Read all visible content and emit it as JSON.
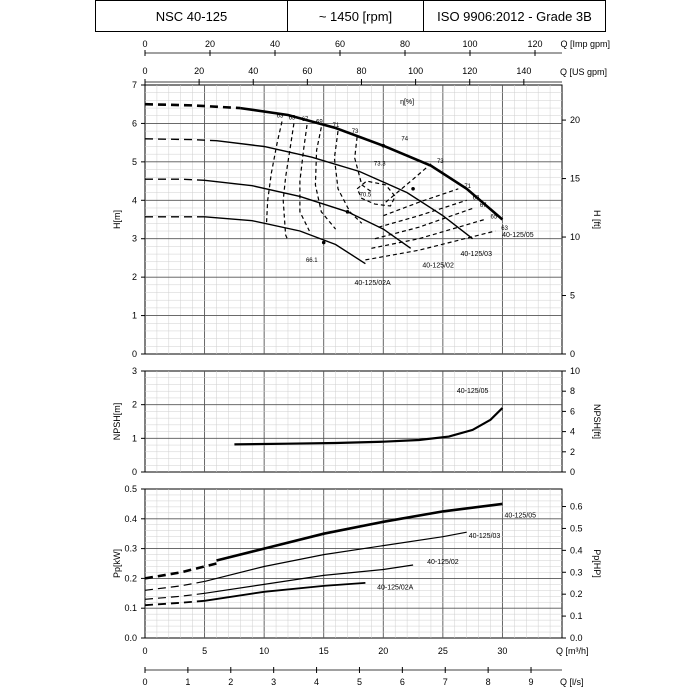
{
  "header": {
    "model": "NSC 40-125",
    "speed": "~ 1450 [rpm]",
    "standard": "ISO 9906:2012 - Grade 3B"
  },
  "axes": {
    "imp_gpm": {
      "label": "Q [Imp gpm]",
      "ticks": [
        "0",
        "20",
        "40",
        "60",
        "80",
        "100",
        "120"
      ]
    },
    "us_gpm": {
      "label": "Q [US gpm]",
      "ticks": [
        "0",
        "20",
        "40",
        "60",
        "80",
        "100",
        "120",
        "140"
      ]
    },
    "m3h": {
      "label": "Q [m³/h]",
      "ticks": [
        "0",
        "5",
        "10",
        "15",
        "20",
        "25",
        "30"
      ]
    },
    "ls": {
      "label": "Q [l/s]",
      "ticks": [
        "0",
        "1",
        "2",
        "3",
        "4",
        "5",
        "6",
        "7",
        "8",
        "9"
      ]
    }
  },
  "chart_data": [
    {
      "type": "line",
      "panel": "head",
      "xlabel": "Q [m³/h]",
      "ylabel": "H[m]",
      "ylabel_right": "H [ft]",
      "xlim": [
        0,
        35
      ],
      "ylim": [
        0,
        7
      ],
      "y_ticks": [
        "0",
        "1",
        "2",
        "3",
        "4",
        "5",
        "6",
        "7"
      ],
      "y_right_ticks": [
        "0",
        "5",
        "10",
        "15",
        "20"
      ],
      "grid": true,
      "efficiency_label": "η[%]",
      "series": [
        {
          "name": "40-125/05",
          "extrapolated": [
            [
              0,
              6.5
            ],
            [
              4,
              6.47
            ],
            [
              8,
              6.4
            ]
          ],
          "points": [
            [
              8,
              6.4
            ],
            [
              12,
              6.22
            ],
            [
              16,
              5.88
            ],
            [
              20,
              5.42
            ],
            [
              24,
              4.9
            ],
            [
              27,
              4.3
            ],
            [
              30,
              3.5
            ]
          ]
        },
        {
          "name": "40-125/03",
          "extrapolated": [
            [
              0,
              5.6
            ],
            [
              4,
              5.58
            ],
            [
              6,
              5.55
            ]
          ],
          "points": [
            [
              6,
              5.55
            ],
            [
              10,
              5.4
            ],
            [
              14,
              5.12
            ],
            [
              18,
              4.75
            ],
            [
              22,
              4.2
            ],
            [
              25,
              3.6
            ],
            [
              27.5,
              3.0
            ]
          ]
        },
        {
          "name": "40-125/02",
          "extrapolated": [
            [
              0,
              4.55
            ],
            [
              3,
              4.55
            ],
            [
              5,
              4.52
            ]
          ],
          "points": [
            [
              5,
              4.52
            ],
            [
              9,
              4.38
            ],
            [
              13,
              4.1
            ],
            [
              17,
              3.7
            ],
            [
              20,
              3.25
            ],
            [
              22.3,
              2.75
            ]
          ]
        },
        {
          "name": "40-125/02A",
          "extrapolated": [
            [
              0,
              3.57
            ],
            [
              3,
              3.57
            ],
            [
              5,
              3.57
            ]
          ],
          "points": [
            [
              5,
              3.57
            ],
            [
              9,
              3.47
            ],
            [
              13,
              3.2
            ],
            [
              16,
              2.85
            ],
            [
              18.5,
              2.35
            ]
          ]
        }
      ],
      "efficiency_curves": [
        {
          "label": "63",
          "points": [
            [
              11.5,
              6.05
            ],
            [
              11.1,
              5.5
            ],
            [
              10.6,
              4.7
            ],
            [
              10.3,
              4.0
            ],
            [
              10.2,
              3.4
            ]
          ]
        },
        {
          "label": "65",
          "points": [
            [
              12.5,
              6.0
            ],
            [
              12.2,
              5.4
            ],
            [
              11.8,
              4.6
            ],
            [
              11.6,
              4.0
            ],
            [
              11.8,
              3.1
            ],
            [
              12,
              2.95
            ]
          ]
        },
        {
          "label": "67",
          "points": [
            [
              13.6,
              5.96
            ],
            [
              13.3,
              5.3
            ],
            [
              13,
              4.5
            ],
            [
              13,
              3.7
            ],
            [
              13.8,
              3.2
            ]
          ]
        },
        {
          "label": "69",
          "points": [
            [
              14.8,
              5.9
            ],
            [
              14.4,
              5.3
            ],
            [
              14.3,
              4.4
            ],
            [
              14.8,
              3.7
            ],
            [
              16,
              3.25
            ]
          ]
        },
        {
          "label": "71",
          "points": [
            [
              16.2,
              5.8
            ],
            [
              15.9,
              5.1
            ],
            [
              16.2,
              4.3
            ],
            [
              17.2,
              3.7
            ],
            [
              18.2,
              3.4
            ]
          ]
        },
        {
          "label": "73",
          "points": [
            [
              17.8,
              5.65
            ],
            [
              17.6,
              5.1
            ],
            [
              18.2,
              4.4
            ],
            [
              19.1,
              4.2
            ]
          ]
        }
      ],
      "efficiency_right": [
        {
          "label": "73",
          "points": [
            [
              20.2,
              3.95
            ],
            [
              22.5,
              4.55
            ],
            [
              24,
              4.95
            ]
          ]
        },
        {
          "label": "71",
          "points": [
            [
              20,
              3.6
            ],
            [
              23,
              3.95
            ],
            [
              26.3,
              4.3
            ]
          ]
        },
        {
          "label": "69",
          "points": [
            [
              19.6,
              3.3
            ],
            [
              23,
              3.6
            ],
            [
              27,
              4.0
            ]
          ]
        },
        {
          "label": "67",
          "points": [
            [
              19.3,
              3.0
            ],
            [
              23,
              3.3
            ],
            [
              27.6,
              3.8
            ]
          ]
        },
        {
          "label": "65",
          "points": [
            [
              19,
              2.75
            ],
            [
              23,
              3.0
            ],
            [
              28.5,
              3.5
            ]
          ]
        },
        {
          "label": "63",
          "points": [
            [
              18.5,
              2.45
            ],
            [
              23,
              2.7
            ],
            [
              29.4,
              3.2
            ]
          ]
        }
      ],
      "efficiency_loop": {
        "points": [
          [
            17.8,
            4.3
          ],
          [
            18.6,
            4.5
          ],
          [
            20.2,
            4.4
          ],
          [
            21,
            4.1
          ],
          [
            20.6,
            3.85
          ],
          [
            19.3,
            3.9
          ],
          [
            18.2,
            4.05
          ]
        ]
      },
      "efficiency_point_labels": [
        "74",
        "73.3",
        "70.5",
        "66.1"
      ]
    },
    {
      "type": "line",
      "panel": "npsh",
      "xlabel": "Q [m³/h]",
      "ylabel": "NPSH[m]",
      "ylabel_right": "NPSH[ft]",
      "xlim": [
        0,
        35
      ],
      "ylim": [
        0,
        3
      ],
      "y_ticks": [
        "0",
        "1",
        "2",
        "3"
      ],
      "y_right_ticks": [
        "0",
        "2",
        "4",
        "6",
        "8",
        "10"
      ],
      "grid": true,
      "series": [
        {
          "name": "40-125/05",
          "points": [
            [
              7.5,
              0.82
            ],
            [
              12,
              0.84
            ],
            [
              16,
              0.86
            ],
            [
              20,
              0.9
            ],
            [
              23,
              0.95
            ],
            [
              25.5,
              1.05
            ],
            [
              27.5,
              1.25
            ],
            [
              29,
              1.55
            ],
            [
              30,
              1.9
            ]
          ]
        }
      ]
    },
    {
      "type": "line",
      "panel": "power",
      "xlabel": "Q [m³/h]",
      "ylabel": "Pp[kW]",
      "ylabel_right": "Pp[HP]",
      "xlim": [
        0,
        35
      ],
      "ylim": [
        0,
        0.5
      ],
      "y_ticks": [
        "0.0",
        "0.1",
        "0.2",
        "0.3",
        "0.4",
        "0.5"
      ],
      "y_right_ticks": [
        "0.0",
        "0.1",
        "0.2",
        "0.3",
        "0.4",
        "0.5",
        "0.6"
      ],
      "grid": true,
      "series": [
        {
          "name": "40-125/05",
          "extrapolated": [
            [
              0,
              0.2
            ],
            [
              3,
              0.22
            ],
            [
              6,
              0.25
            ]
          ],
          "points": [
            [
              6,
              0.26
            ],
            [
              10,
              0.3
            ],
            [
              15,
              0.35
            ],
            [
              20,
              0.39
            ],
            [
              25,
              0.425
            ],
            [
              30,
              0.45
            ]
          ]
        },
        {
          "name": "40-125/03",
          "extrapolated": [
            [
              0,
              0.16
            ],
            [
              3,
              0.175
            ],
            [
              5,
              0.19
            ]
          ],
          "points": [
            [
              5,
              0.19
            ],
            [
              10,
              0.24
            ],
            [
              15,
              0.28
            ],
            [
              20,
              0.31
            ],
            [
              25,
              0.34
            ],
            [
              27,
              0.355
            ]
          ]
        },
        {
          "name": "40-125/02",
          "extrapolated": [
            [
              0,
              0.13
            ],
            [
              3,
              0.14
            ],
            [
              5,
              0.15
            ]
          ],
          "points": [
            [
              5,
              0.15
            ],
            [
              10,
              0.18
            ],
            [
              15,
              0.21
            ],
            [
              20,
              0.23
            ],
            [
              22.5,
              0.245
            ]
          ]
        },
        {
          "name": "40-125/02A",
          "extrapolated": [
            [
              0,
              0.11
            ],
            [
              3,
              0.118
            ],
            [
              5,
              0.125
            ]
          ],
          "points": [
            [
              5,
              0.125
            ],
            [
              10,
              0.155
            ],
            [
              15,
              0.175
            ],
            [
              18.5,
              0.185
            ]
          ]
        }
      ]
    }
  ]
}
